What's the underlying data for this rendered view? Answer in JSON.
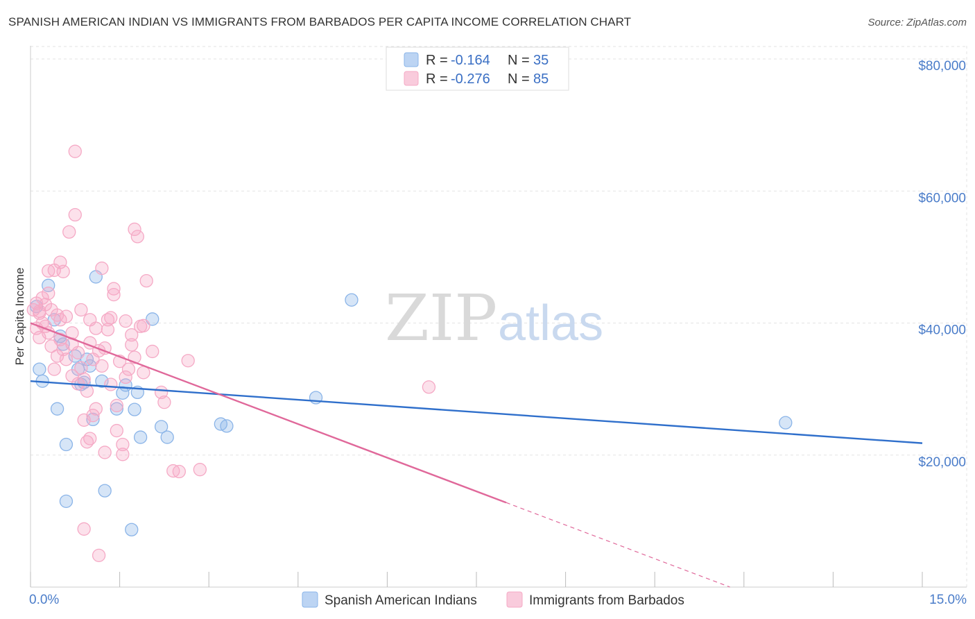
{
  "title": "SPANISH AMERICAN INDIAN VS IMMIGRANTS FROM BARBADOS PER CAPITA INCOME CORRELATION CHART",
  "source": "Source: ZipAtlas.com",
  "watermark": {
    "zip": "ZIP",
    "atlas": "atlas"
  },
  "chart_data": {
    "type": "scatter",
    "title": "SPANISH AMERICAN INDIAN VS IMMIGRANTS FROM BARBADOS PER CAPITA INCOME CORRELATION CHART",
    "xlabel": "",
    "ylabel": "Per Capita Income",
    "xlim": [
      0,
      15
    ],
    "ylim": [
      0,
      82000
    ],
    "x_tick_labels": {
      "min": "0.0%",
      "max": "15.0%"
    },
    "y_ticks": [
      {
        "value": 20000,
        "label": "$20,000"
      },
      {
        "value": 40000,
        "label": "$40,000"
      },
      {
        "value": 60000,
        "label": "$60,000"
      },
      {
        "value": 80000,
        "label": "$80,000"
      }
    ],
    "legend": {
      "r_label": "R =",
      "n_label": "N =",
      "entries": [
        {
          "r": "-0.164",
          "n": "35"
        },
        {
          "r": "-0.276",
          "n": "85"
        }
      ]
    },
    "series": [
      {
        "name": "Spanish American Indians",
        "color": "#8ab4e8",
        "line_color": "#2f6fcb",
        "trend": {
          "x0": 0,
          "y0": 31200,
          "x1": 15,
          "y1": 21800,
          "solid_until": 15
        },
        "points": [
          [
            0.1,
            42500
          ],
          [
            0.2,
            31200
          ],
          [
            0.3,
            45700
          ],
          [
            0.4,
            40500
          ],
          [
            0.45,
            27000
          ],
          [
            0.55,
            36800
          ],
          [
            0.6,
            13000
          ],
          [
            0.6,
            21600
          ],
          [
            0.75,
            35000
          ],
          [
            0.8,
            33000
          ],
          [
            0.85,
            30700
          ],
          [
            0.9,
            31000
          ],
          [
            0.95,
            34500
          ],
          [
            1.0,
            33500
          ],
          [
            1.05,
            25400
          ],
          [
            1.1,
            47000
          ],
          [
            1.2,
            31200
          ],
          [
            1.25,
            14600
          ],
          [
            1.45,
            27000
          ],
          [
            1.55,
            29400
          ],
          [
            1.6,
            30600
          ],
          [
            1.7,
            8700
          ],
          [
            1.75,
            26900
          ],
          [
            1.8,
            29500
          ],
          [
            1.85,
            22700
          ],
          [
            2.05,
            40600
          ],
          [
            2.2,
            24300
          ],
          [
            2.3,
            22700
          ],
          [
            3.2,
            24700
          ],
          [
            3.3,
            24400
          ],
          [
            4.8,
            28700
          ],
          [
            5.4,
            43500
          ],
          [
            12.7,
            24900
          ],
          [
            0.15,
            33000
          ],
          [
            0.5,
            38000
          ]
        ]
      },
      {
        "name": "Immigrants from Barbados",
        "color": "#f5a9c5",
        "line_color": "#e0689a",
        "trend": {
          "x0": 0,
          "y0": 40000,
          "x1": 15,
          "y1": -11000,
          "solid_until": 8.0
        },
        "points": [
          [
            0.05,
            42000
          ],
          [
            0.1,
            43000
          ],
          [
            0.15,
            41500
          ],
          [
            0.2,
            40000
          ],
          [
            0.25,
            42800
          ],
          [
            0.3,
            44500
          ],
          [
            0.3,
            38500
          ],
          [
            0.35,
            36500
          ],
          [
            0.4,
            48000
          ],
          [
            0.4,
            33000
          ],
          [
            0.45,
            41200
          ],
          [
            0.5,
            40500
          ],
          [
            0.5,
            37500
          ],
          [
            0.55,
            47800
          ],
          [
            0.55,
            36000
          ],
          [
            0.6,
            34500
          ],
          [
            0.65,
            53800
          ],
          [
            0.7,
            38500
          ],
          [
            0.7,
            32000
          ],
          [
            0.75,
            66000
          ],
          [
            0.75,
            56400
          ],
          [
            0.8,
            35500
          ],
          [
            0.85,
            42000
          ],
          [
            0.9,
            31500
          ],
          [
            0.9,
            25300
          ],
          [
            0.95,
            22000
          ],
          [
            1.0,
            40500
          ],
          [
            1.0,
            37000
          ],
          [
            1.05,
            34500
          ],
          [
            1.05,
            26000
          ],
          [
            1.1,
            39200
          ],
          [
            1.15,
            35800
          ],
          [
            1.2,
            48300
          ],
          [
            1.2,
            33500
          ],
          [
            1.25,
            20400
          ],
          [
            1.3,
            40500
          ],
          [
            1.3,
            39000
          ],
          [
            1.35,
            30700
          ],
          [
            1.4,
            45200
          ],
          [
            1.4,
            44300
          ],
          [
            1.45,
            27500
          ],
          [
            1.5,
            34200
          ],
          [
            1.55,
            21600
          ],
          [
            1.55,
            20100
          ],
          [
            1.6,
            40300
          ],
          [
            1.65,
            33000
          ],
          [
            1.7,
            38200
          ],
          [
            1.75,
            34800
          ],
          [
            1.75,
            54200
          ],
          [
            1.8,
            53100
          ],
          [
            1.85,
            39500
          ],
          [
            1.9,
            32500
          ],
          [
            1.95,
            46400
          ],
          [
            2.05,
            35700
          ],
          [
            2.2,
            29500
          ],
          [
            2.25,
            28000
          ],
          [
            2.4,
            17600
          ],
          [
            2.5,
            17500
          ],
          [
            2.65,
            34300
          ],
          [
            2.85,
            17800
          ],
          [
            0.9,
            8800
          ],
          [
            1.15,
            4800
          ],
          [
            0.1,
            39200
          ],
          [
            0.15,
            37800
          ],
          [
            0.2,
            43800
          ],
          [
            0.25,
            39500
          ],
          [
            0.35,
            42000
          ],
          [
            0.45,
            35000
          ],
          [
            0.6,
            41000
          ],
          [
            0.7,
            36800
          ],
          [
            0.8,
            30800
          ],
          [
            0.95,
            29700
          ],
          [
            1.1,
            27000
          ],
          [
            1.25,
            36200
          ],
          [
            1.35,
            40800
          ],
          [
            1.45,
            23700
          ],
          [
            1.6,
            31800
          ],
          [
            1.7,
            36700
          ],
          [
            0.3,
            47900
          ],
          [
            0.5,
            49200
          ],
          [
            6.7,
            30300
          ],
          [
            1.0,
            22500
          ],
          [
            0.85,
            33200
          ],
          [
            1.9,
            39600
          ],
          [
            0.15,
            41800
          ]
        ]
      }
    ]
  }
}
